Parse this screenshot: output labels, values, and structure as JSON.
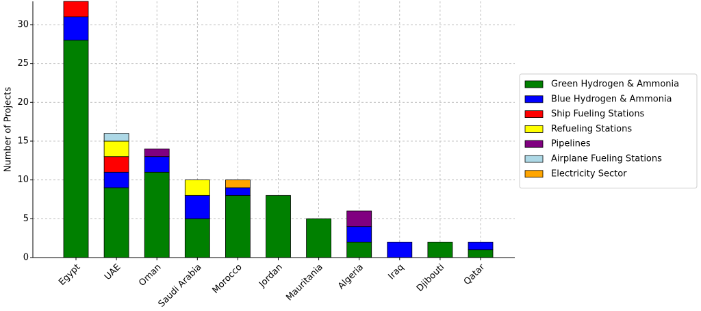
{
  "chart_data": {
    "type": "stacked_bar",
    "y_label": "Number of Projects",
    "categories": [
      "Egypt",
      "UAE",
      "Oman",
      "Saudi Arabia",
      "Morocco",
      "Jordan",
      "Mauritania",
      "Algeria",
      "Iraq",
      "Djibouti",
      "Qatar"
    ],
    "series": [
      {
        "name": "Green Hydrogen & Ammonia",
        "color": "#008000",
        "values": [
          28,
          9,
          11,
          5,
          8,
          8,
          5,
          2,
          0,
          2,
          1
        ]
      },
      {
        "name": "Blue Hydrogen & Ammonia",
        "color": "#0000ff",
        "values": [
          3,
          2,
          2,
          3,
          1,
          0,
          0,
          2,
          2,
          0,
          1
        ]
      },
      {
        "name": "Ship Fueling Stations",
        "color": "#ff0000",
        "values": [
          2,
          2,
          0,
          0,
          0,
          0,
          0,
          0,
          0,
          0,
          0
        ]
      },
      {
        "name": "Refueling Stations",
        "color": "#ffff00",
        "values": [
          0,
          2,
          0,
          2,
          0,
          0,
          0,
          0,
          0,
          0,
          0
        ]
      },
      {
        "name": "Pipelines",
        "color": "#800080",
        "values": [
          0,
          0,
          1,
          0,
          0,
          0,
          0,
          2,
          0,
          0,
          0
        ]
      },
      {
        "name": "Airplane Fueling Stations",
        "color": "#add8e6",
        "values": [
          0,
          1,
          0,
          0,
          0,
          0,
          0,
          0,
          0,
          0,
          0
        ]
      },
      {
        "name": "Electricity Sector",
        "color": "#ffa500",
        "values": [
          0,
          0,
          0,
          0,
          1,
          0,
          0,
          0,
          0,
          0,
          0
        ]
      }
    ],
    "ylim": [
      0,
      33
    ],
    "yticks": [
      0,
      5,
      10,
      15,
      20,
      25,
      30
    ],
    "grid": true,
    "legend": "right"
  }
}
